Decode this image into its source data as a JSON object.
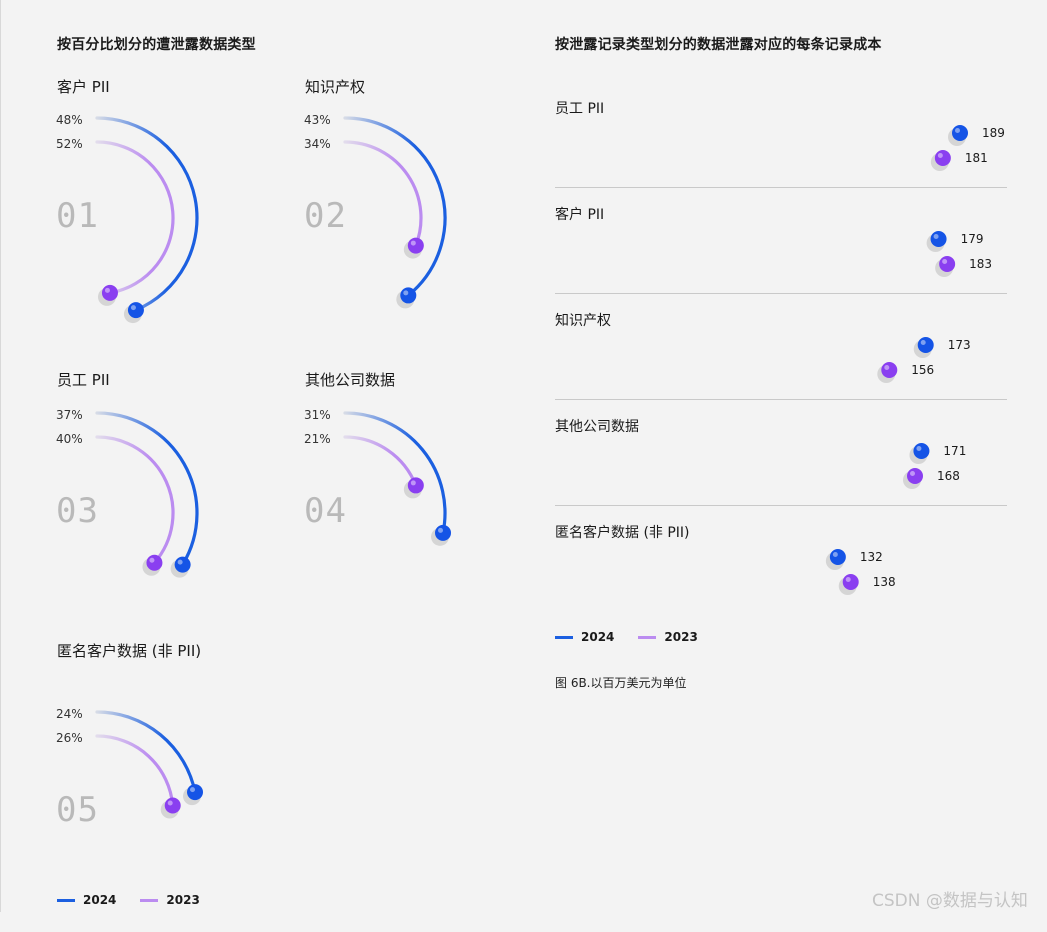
{
  "colors": {
    "y2024": "#1b5fe0",
    "y2023": "#bb8cf0",
    "dot2024": "#1554e6",
    "dot2023": "#8a3ff0"
  },
  "left_title": "按百分比划分的遭泄露数据类型",
  "right_title": "按泄露记录类型划分的数据泄露对应的每条记录成本",
  "legend": {
    "y2024": "2024",
    "y2023": "2023"
  },
  "note": "图 6B.以百万美元为单位",
  "watermark": "CSDN @数据与认知",
  "chart_data": [
    {
      "type": "radial-bar",
      "title": "按百分比划分的遭泄露数据类型",
      "unit": "%",
      "series_names": [
        "2024",
        "2023"
      ],
      "items": [
        {
          "label": "客户 PII",
          "index": "01",
          "y2024": 48,
          "y2023": 52,
          "y2024_text": "48%",
          "y2023_text": "52%"
        },
        {
          "label": "知识产权",
          "index": "02",
          "y2024": 43,
          "y2023": 34,
          "y2024_text": "43%",
          "y2023_text": "34%"
        },
        {
          "label": "员工 PII",
          "index": "03",
          "y2024": 37,
          "y2023": 40,
          "y2024_text": "37%",
          "y2023_text": "40%"
        },
        {
          "label": "其他公司数据",
          "index": "04",
          "y2024": 31,
          "y2023": 21,
          "y2024_text": "31%",
          "y2023_text": "21%"
        },
        {
          "label": "匿名客户数据 (非 PII)",
          "index": "05",
          "y2024": 24,
          "y2023": 26,
          "y2024_text": "24%",
          "y2023_text": "26%"
        }
      ]
    },
    {
      "type": "bar",
      "orientation": "horizontal",
      "title": "按泄露记录类型划分的数据泄露对应的每条记录成本",
      "series_names": [
        "2024",
        "2023"
      ],
      "xlim": [
        0,
        200
      ],
      "items": [
        {
          "label": "员工 PII",
          "y2024": 189,
          "y2023": 181
        },
        {
          "label": "客户 PII",
          "y2024": 179,
          "y2023": 183
        },
        {
          "label": "知识产权",
          "y2024": 173,
          "y2023": 156
        },
        {
          "label": "其他公司数据",
          "y2024": 171,
          "y2023": 168
        },
        {
          "label": "匿名客户数据 (非 PII)",
          "y2024": 132,
          "y2023": 138
        }
      ]
    }
  ]
}
